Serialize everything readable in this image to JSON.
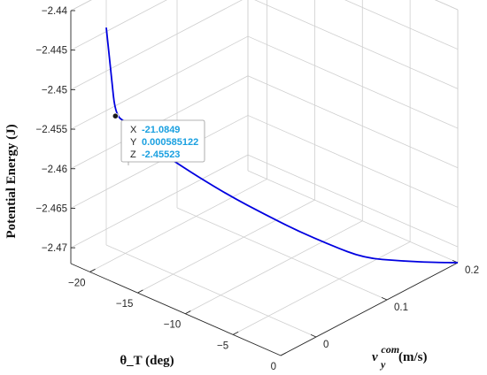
{
  "chart_data": {
    "type": "line",
    "title": "",
    "xlabel": "θ_T (deg)",
    "ylabel_base": "v",
    "ylabel_sup": "com",
    "ylabel_sub": "y",
    "ylabel_units": "(m/s)",
    "zlabel": "Potential Energy (J)",
    "xlim": [
      -22,
      0
    ],
    "ylim": [
      -0.05,
      0.2
    ],
    "zlim": [
      -2.472,
      -2.44
    ],
    "x_ticks": [
      -20,
      -15,
      -10,
      -5,
      0
    ],
    "x_tick_labels": [
      "-20",
      "-15",
      "-10",
      "-5",
      "0"
    ],
    "y_ticks": [
      0,
      0.1,
      0.2
    ],
    "y_tick_labels": [
      "0",
      "0.1",
      "0.2"
    ],
    "z_ticks": [
      -2.44,
      -2.445,
      -2.45,
      -2.455,
      -2.46,
      -2.465,
      -2.47
    ],
    "z_tick_labels": [
      "-2.44",
      "-2.445",
      "-2.45",
      "-2.455",
      "-2.46",
      "-2.465",
      "-2.47"
    ],
    "grid": true,
    "line_color": "#0000e0",
    "series": [
      {
        "points": [
          {
            "x": -22.0,
            "y": 0.0,
            "z": -2.4445
          },
          {
            "x": -21.5,
            "y": 0.0003,
            "z": -2.4502
          },
          {
            "x": -21.08,
            "y": 0.0006,
            "z": -2.4552
          },
          {
            "x": -20.2,
            "y": 0.005,
            "z": -2.4558
          },
          {
            "x": -19.0,
            "y": 0.01,
            "z": -2.4575
          },
          {
            "x": -17.0,
            "y": 0.02,
            "z": -2.4592
          },
          {
            "x": -15.0,
            "y": 0.035,
            "z": -2.4613
          },
          {
            "x": -13.0,
            "y": 0.055,
            "z": -2.4637
          },
          {
            "x": -11.0,
            "y": 0.075,
            "z": -2.4658
          },
          {
            "x": -9.0,
            "y": 0.095,
            "z": -2.4678
          },
          {
            "x": -7.0,
            "y": 0.115,
            "z": -2.4695
          },
          {
            "x": -5.0,
            "y": 0.135,
            "z": -2.471
          },
          {
            "x": -3.0,
            "y": 0.16,
            "z": -2.4715
          },
          {
            "x": -1.0,
            "y": 0.185,
            "z": -2.4718
          },
          {
            "x": 0.0,
            "y": 0.2,
            "z": -2.472
          }
        ]
      }
    ],
    "datatip": {
      "x": -21.0849,
      "y": 0.000585122,
      "z": -2.45523,
      "x_key": "X",
      "y_key": "Y",
      "z_key": "Z",
      "x_value": "-21.0849",
      "y_value": "0.000585122",
      "z_value": "-2.45523"
    }
  }
}
